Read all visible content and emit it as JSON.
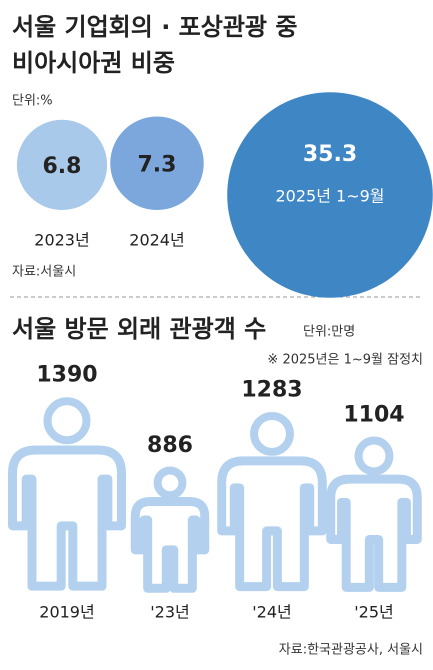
{
  "chart_data": [
    {
      "type": "bubble",
      "title": [
        "서울 기업회의 · 포상관광 중",
        "비아시아권 비중"
      ],
      "unit": "단위:%",
      "categories": [
        "2023년",
        "2024년",
        "2025년 1~9월"
      ],
      "values": [
        6.8,
        7.3,
        35.3
      ],
      "colors": [
        "#a9c9eb",
        "#7ba7dd",
        "#3f86c4"
      ],
      "source": "자료:서울시"
    },
    {
      "type": "pictogram",
      "title": "서울 방문 외래 관광객 수",
      "unit": "단위:만명",
      "note": "※ 2025년은 1~9월 잠정치",
      "categories": [
        "2019년",
        "'23년",
        "'24년",
        "'25년"
      ],
      "values": [
        1390,
        886,
        1283,
        1104
      ],
      "color": "#b3d1ee",
      "source": "자료:한국관광공사, 서울시"
    }
  ]
}
